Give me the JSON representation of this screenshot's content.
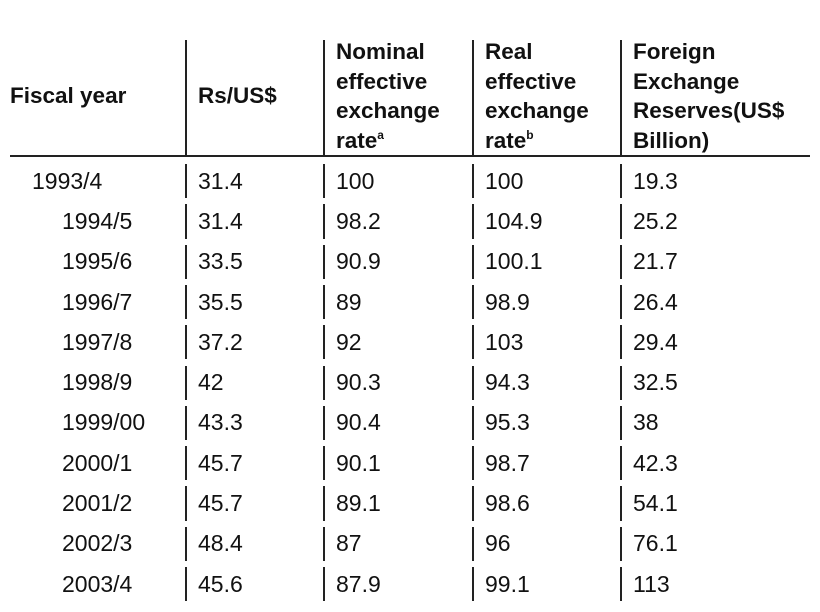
{
  "table": {
    "headers": [
      {
        "lines": [
          "Fiscal year"
        ]
      },
      {
        "lines": [
          "Rs/US$"
        ]
      },
      {
        "lines": [
          "Nominal",
          "effective",
          "exchange",
          "rate"
        ],
        "note": "a"
      },
      {
        "lines": [
          "Real",
          "effective",
          "exchange",
          "rate"
        ],
        "note": "b"
      },
      {
        "lines": [
          "Foreign",
          "Exchange",
          "Reserves(US$",
          "Billion)"
        ]
      }
    ],
    "rows": [
      [
        "1993/4",
        31.4,
        100,
        100,
        19.3
      ],
      [
        "1994/5",
        31.4,
        98.2,
        104.9,
        25.2
      ],
      [
        "1995/6",
        33.5,
        90.9,
        100.1,
        21.7
      ],
      [
        "1996/7",
        35.5,
        89,
        98.9,
        26.4
      ],
      [
        "1997/8",
        37.2,
        92,
        103,
        29.4
      ],
      [
        "1998/9",
        42,
        90.3,
        94.3,
        32.5
      ],
      [
        "1999/00",
        43.3,
        90.4,
        95.3,
        38
      ],
      [
        "2000/1",
        45.7,
        90.1,
        98.7,
        42.3
      ],
      [
        "2001/2",
        45.7,
        89.1,
        98.6,
        54.1
      ],
      [
        "2002/3",
        48.4,
        87,
        96,
        76.1
      ],
      [
        "2003/4",
        45.6,
        87.9,
        99.1,
        113
      ]
    ]
  }
}
